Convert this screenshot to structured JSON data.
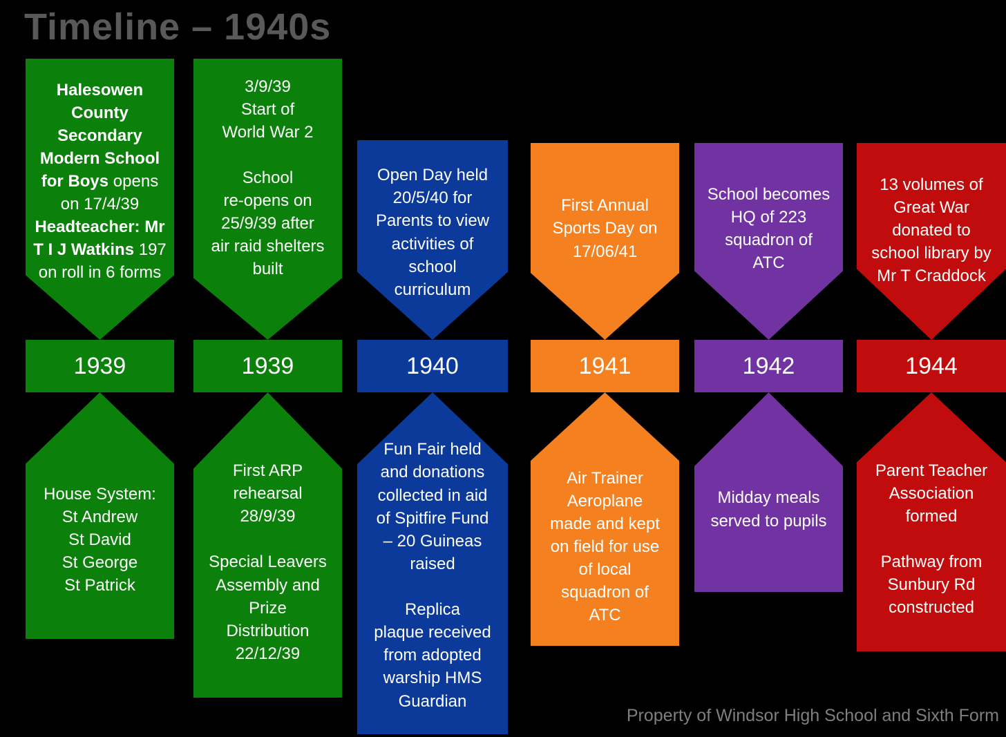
{
  "title": {
    "text": "Timeline – 1940s"
  },
  "footer": {
    "text": "Property of Windsor High School and Sixth Form"
  },
  "palette": {
    "green": "#0b800b",
    "blue": "#0b3a9b",
    "orange": "#f5801f",
    "purple": "#7133a2",
    "red": "#c00c0c",
    "title_gray": "#595959",
    "footer_gray": "#7f7f7f",
    "text_white": "#ffffff",
    "background": "#000000"
  },
  "columns": [
    {
      "year": "1939",
      "color": "green",
      "top": {
        "segments": [
          {
            "t": "Halesowen County Secondary Modern School for Boys",
            "b": true
          },
          {
            "t": " opens on 17/4/39 ",
            "b": false
          },
          {
            "t": "Headteacher: Mr T I J Watkins",
            "b": true
          },
          {
            "t": " 197 on roll in 6 forms",
            "b": false
          }
        ]
      },
      "bottom": {
        "text": "House System:\nSt Andrew\nSt David\nSt George\nSt Patrick"
      }
    },
    {
      "year": "1939",
      "color": "green",
      "top": {
        "text": "3/9/39\nStart of\nWorld War 2\n\nSchool\nre-opens on\n25/9/39 after\nair raid shelters\nbuilt"
      },
      "bottom": {
        "text": "First ARP\nrehearsal\n28/9/39\n\nSpecial Leavers\nAssembly and\nPrize\nDistribution\n22/12/39"
      }
    },
    {
      "year": "1940",
      "color": "blue",
      "top": {
        "text": "Open Day held\n20/5/40 for\nParents to view\nactivities of\nschool\ncurriculum"
      },
      "bottom": {
        "text": "Fun Fair held\nand donations\ncollected in aid\nof Spitfire Fund\n– 20 Guineas\nraised\n\nReplica\nplaque received\nfrom adopted\nwarship HMS\nGuardian"
      }
    },
    {
      "year": "1941",
      "color": "orange",
      "top": {
        "text": "First Annual\nSports Day on\n17/06/41"
      },
      "bottom": {
        "text": "Air Trainer\nAeroplane\nmade and kept\non field for use\nof local\nsquadron of\nATC"
      }
    },
    {
      "year": "1942",
      "color": "purple",
      "top": {
        "text": "School becomes\nHQ of 223\nsquadron of\nATC"
      },
      "bottom": {
        "text": "Midday meals\nserved to pupils"
      }
    },
    {
      "year": "1944",
      "color": "red",
      "top": {
        "text": "13 volumes of\nGreat War\ndonated to\nschool library by\nMr T Craddock"
      },
      "bottom": {
        "text": "Parent Teacher\nAssociation\nformed\n\nPathway from\nSunbury Rd\nconstructed"
      }
    }
  ]
}
